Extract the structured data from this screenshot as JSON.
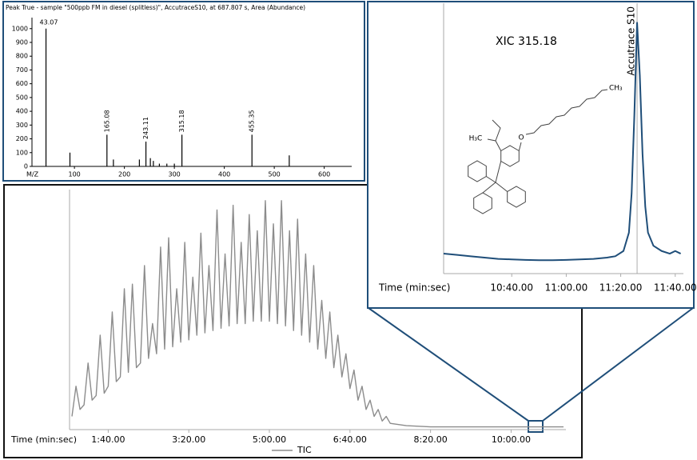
{
  "chart_data": [
    {
      "type": "stem",
      "title": "Peak True - sample \"500ppb FM in diesel (splitless)\", AccutraceS10, at 687.807 s, Area (Abundance)",
      "x_label": "M/Z",
      "x": [
        43.07,
        91,
        165.08,
        178,
        230,
        243.11,
        252,
        258,
        270,
        285,
        300,
        315.18,
        455.35,
        530
      ],
      "values": [
        1000,
        100,
        230,
        50,
        50,
        180,
        60,
        40,
        20,
        20,
        20,
        230,
        230,
        80
      ],
      "x_labels": [
        "43.07",
        null,
        "165.08",
        null,
        null,
        "243.11",
        null,
        null,
        null,
        null,
        null,
        "315.18",
        "455.35",
        null
      ],
      "color": "#000000",
      "xlim": [
        15,
        655
      ],
      "ylim": [
        0,
        1080
      ],
      "xticks": [
        100,
        200,
        300,
        400,
        500,
        600
      ],
      "yticks": [
        0,
        100,
        200,
        300,
        400,
        500,
        600,
        700,
        800,
        900,
        1000
      ]
    },
    {
      "type": "line",
      "x_label": "Time (min:sec)",
      "x": [
        55,
        60,
        65,
        70,
        75,
        80,
        85,
        90,
        95,
        100,
        105,
        110,
        115,
        120,
        125,
        130,
        135,
        140,
        145,
        150,
        155,
        160,
        165,
        170,
        175,
        180,
        185,
        190,
        195,
        200,
        205,
        210,
        215,
        220,
        225,
        230,
        235,
        240,
        245,
        250,
        255,
        260,
        265,
        270,
        275,
        280,
        285,
        290,
        295,
        300,
        305,
        310,
        315,
        320,
        325,
        330,
        335,
        340,
        345,
        350,
        355,
        360,
        365,
        370,
        375,
        380,
        385,
        390,
        395,
        400,
        405,
        410,
        415,
        420,
        425,
        430,
        435,
        440,
        445,
        450,
        470,
        500,
        550,
        600,
        650,
        665
      ],
      "series": [
        {
          "name": "TIC",
          "color": "#8c8c8c",
          "values": [
            5,
            18,
            8,
            10,
            28,
            12,
            14,
            40,
            15,
            18,
            50,
            20,
            22,
            60,
            24,
            62,
            26,
            28,
            70,
            30,
            45,
            32,
            78,
            34,
            82,
            35,
            60,
            37,
            80,
            38,
            65,
            40,
            84,
            41,
            70,
            42,
            94,
            43,
            75,
            44,
            96,
            45,
            80,
            45,
            92,
            46,
            85,
            46,
            98,
            46,
            88,
            45,
            98,
            44,
            85,
            42,
            90,
            40,
            75,
            37,
            70,
            34,
            55,
            30,
            50,
            26,
            40,
            22,
            32,
            17,
            25,
            12,
            18,
            8,
            12,
            5,
            8,
            3,
            5,
            2,
            1,
            0.5,
            0.5,
            0.5,
            0.5,
            0.5
          ]
        }
      ],
      "xlim": [
        52,
        668
      ],
      "ylim": [
        0,
        100
      ],
      "xticks": [
        {
          "value": 100,
          "label": "1:40.00"
        },
        {
          "value": 200,
          "label": "3:20.00"
        },
        {
          "value": 300,
          "label": "5:00.00"
        },
        {
          "value": 400,
          "label": "6:40.00"
        },
        {
          "value": 500,
          "label": "8:20.00"
        },
        {
          "value": 600,
          "label": "10:00.00"
        }
      ],
      "legend": "bottom"
    },
    {
      "type": "line",
      "title": "XIC 315.18",
      "x_label": "Time (min:sec)",
      "x": [
        615,
        620,
        625,
        630,
        635,
        640,
        645,
        650,
        655,
        660,
        665,
        670,
        675,
        678,
        681,
        683,
        684,
        685,
        686,
        687,
        688,
        689,
        690,
        692,
        695,
        698,
        700,
        702
      ],
      "values": [
        7,
        6.5,
        6,
        5.5,
        5,
        4.8,
        4.6,
        4.5,
        4.5,
        4.6,
        4.8,
        5,
        5.5,
        6,
        8,
        15,
        30,
        60,
        95,
        75,
        45,
        25,
        15,
        10,
        8,
        7,
        8,
        7
      ],
      "color": "#1f4e79",
      "xlim": [
        615,
        703
      ],
      "ylim": [
        0,
        100
      ],
      "xticks": [
        {
          "value": 640,
          "label": "10:40.00"
        },
        {
          "value": 660,
          "label": "11:00.00"
        },
        {
          "value": 680,
          "label": "11:20.00"
        },
        {
          "value": 700,
          "label": "11:40.00"
        }
      ],
      "annotations": [
        {
          "x": 686,
          "label": "Accutrace S10"
        }
      ],
      "structure_labels": [
        "CH₃",
        "H₃C",
        "O"
      ]
    }
  ]
}
